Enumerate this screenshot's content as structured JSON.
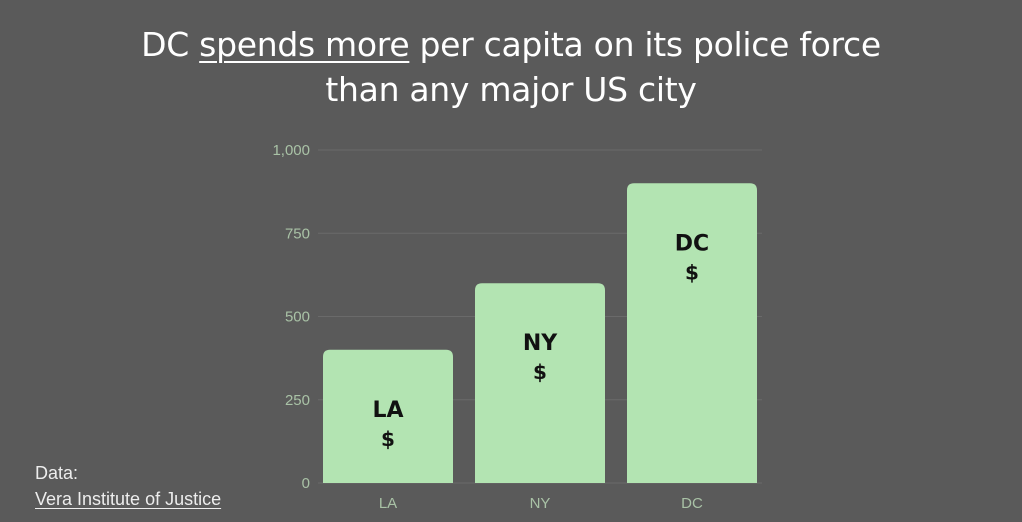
{
  "title": {
    "before": "DC ",
    "emphasis": "spends more",
    "after": " per capita on its police force",
    "line2": "than any major US city"
  },
  "source": {
    "label": "Data:",
    "link": "Vera Institute of Justice"
  },
  "colors": {
    "background": "#5a5a5a",
    "bar": "#b3e4b2",
    "axis_text": "#a9c2a6",
    "grid": "#6a6a6a"
  },
  "chart_data": {
    "type": "bar",
    "categories": [
      "LA",
      "NY",
      "DC"
    ],
    "values": [
      400,
      600,
      900
    ],
    "bar_labels": [
      {
        "name": "LA",
        "symbol": "$"
      },
      {
        "name": "NY",
        "symbol": "$"
      },
      {
        "name": "DC",
        "symbol": "$"
      }
    ],
    "yticks": [
      "0",
      "250",
      "500",
      "750",
      "1,000"
    ],
    "ytick_values": [
      0,
      250,
      500,
      750,
      1000
    ],
    "ylim": [
      0,
      1000
    ],
    "grid": true,
    "legend": "none"
  }
}
